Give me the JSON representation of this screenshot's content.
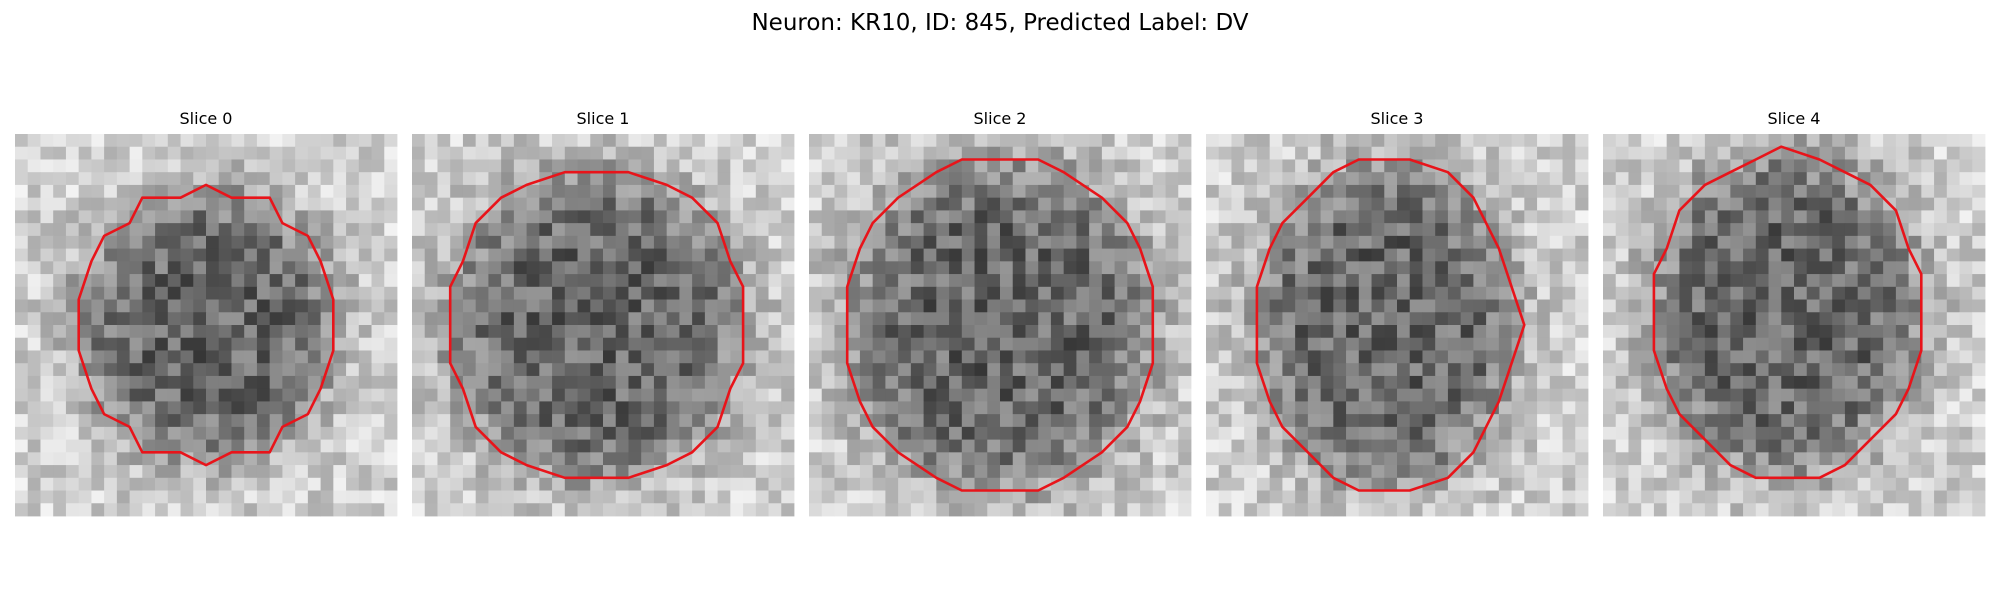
{
  "figure": {
    "title": "Neuron: KR10, ID: 845, Predicted Label: DV",
    "panels": [
      {
        "title": "Slice 0"
      },
      {
        "title": "Slice 1"
      },
      {
        "title": "Slice 2"
      },
      {
        "title": "Slice 3"
      },
      {
        "title": "Slice 4"
      }
    ]
  }
}
